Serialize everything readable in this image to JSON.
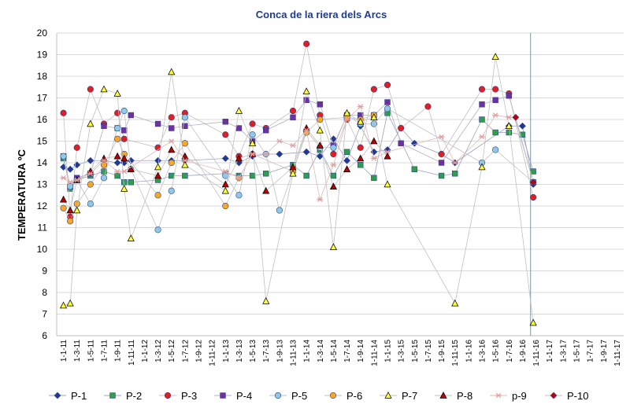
{
  "chart_data": {
    "type": "line",
    "title": "Conca de la riera dels Arcs",
    "ylabel": "TEMPERATURA     ºC",
    "xlabel": "",
    "ylim": [
      6,
      20
    ],
    "yticks": [
      6,
      7,
      8,
      9,
      10,
      11,
      12,
      13,
      14,
      15,
      16,
      17,
      18,
      19,
      20
    ],
    "grid": true,
    "legend_position": "bottom",
    "colors": {
      "title": "#1f3a93",
      "grid": "#d9d9d9",
      "connector": "#a6a6a6",
      "marker_line": "#2f3f8f",
      "vline": "#4bacc6"
    },
    "x": [
      "1-1-11",
      "1-3-11",
      "1-5-11",
      "1-7-11",
      "1-9-11",
      "1-11-11",
      "1-1-12",
      "1-3-12",
      "1-5-12",
      "1-7-12",
      "1-9-12",
      "1-11-12",
      "1-1-13",
      "1-3-13",
      "1-5-13",
      "1-7-13",
      "1-9-13",
      "1-11-13",
      "1-1-14",
      "1-3-14",
      "1-5-14",
      "1-7-14",
      "1-9-14",
      "1-11-14",
      "1-1-15",
      "1-3-15",
      "1-5-15",
      "1-7-15",
      "1-9-15",
      "1-11-15",
      "1-1-16",
      "1-3-16",
      "1-5-16",
      "1-7-16",
      "1-9-16",
      "1-11-16",
      "1-1-17",
      "1-3-17",
      "1-5-17",
      "1-7-17",
      "1-9-17",
      "1-11-17"
    ],
    "vline_at": 34.6,
    "series": [
      {
        "name": "P-1",
        "marker": "diamond",
        "color": "#1f3a93",
        "line": "#9aa0c0",
        "points": [
          [
            0,
            13.8
          ],
          [
            0.5,
            13.7
          ],
          [
            1,
            13.9
          ],
          [
            2,
            14.1
          ],
          [
            3,
            14.1
          ],
          [
            4,
            14.0
          ],
          [
            4.5,
            14.0
          ],
          [
            5,
            14.1
          ],
          [
            7,
            14.1
          ],
          [
            8,
            14.1
          ],
          [
            9,
            14.1
          ],
          [
            12,
            14.2
          ],
          [
            13,
            14.0
          ],
          [
            14,
            14.3
          ],
          [
            15,
            14.4
          ],
          [
            16,
            14.4
          ],
          [
            18,
            14.5
          ],
          [
            19,
            14.3
          ],
          [
            20,
            15.1
          ],
          [
            21,
            14.1
          ],
          [
            22,
            15.7
          ],
          [
            23,
            14.5
          ],
          [
            24,
            14.6
          ],
          [
            25,
            15.6
          ],
          [
            26,
            14.9
          ],
          [
            28,
            14.4
          ],
          [
            29,
            14.0
          ],
          [
            33,
            15.7
          ],
          [
            34,
            15.7
          ],
          [
            34.8,
            13.0
          ]
        ]
      },
      {
        "name": "P-2",
        "marker": "square",
        "color": "#2e9e4a",
        "line": "#9aa0c0",
        "points": [
          [
            0,
            14.2
          ],
          [
            0.5,
            12.8
          ],
          [
            1,
            13.2
          ],
          [
            2,
            13.4
          ],
          [
            3,
            13.6
          ],
          [
            4,
            13.4
          ],
          [
            4.5,
            13.1
          ],
          [
            5,
            13.1
          ],
          [
            7,
            13.2
          ],
          [
            8,
            13.4
          ],
          [
            9,
            13.4
          ],
          [
            12,
            13.5
          ],
          [
            13,
            13.4
          ],
          [
            14,
            13.4
          ],
          [
            15,
            13.5
          ],
          [
            17,
            13.9
          ],
          [
            18,
            13.4
          ],
          [
            19,
            14.6
          ],
          [
            20,
            13.4
          ],
          [
            21,
            14.5
          ],
          [
            22,
            13.9
          ],
          [
            23,
            13.3
          ],
          [
            24,
            16.3
          ],
          [
            26,
            13.7
          ],
          [
            28,
            13.4
          ],
          [
            29,
            13.5
          ],
          [
            31,
            16.0
          ],
          [
            32,
            15.4
          ],
          [
            33,
            15.4
          ],
          [
            34,
            15.3
          ],
          [
            34.8,
            13.6
          ]
        ]
      },
      {
        "name": "P-3",
        "marker": "circle",
        "color": "#e02020",
        "line": "#c0c0c0",
        "points": [
          [
            0,
            16.3
          ],
          [
            0.5,
            11.5
          ],
          [
            1,
            14.7
          ],
          [
            2,
            17.4
          ],
          [
            3,
            15.8
          ],
          [
            4,
            16.3
          ],
          [
            4.5,
            15.1
          ],
          [
            7,
            14.7
          ],
          [
            8,
            16.1
          ],
          [
            9,
            16.3
          ],
          [
            12,
            15.3
          ],
          [
            13,
            14.3
          ],
          [
            14,
            15.8
          ],
          [
            15,
            15.6
          ],
          [
            17,
            16.4
          ],
          [
            18,
            19.5
          ],
          [
            19,
            16.2
          ],
          [
            20,
            14.4
          ],
          [
            21,
            16.0
          ],
          [
            22,
            14.7
          ],
          [
            23,
            17.4
          ],
          [
            24,
            17.6
          ],
          [
            25,
            15.6
          ],
          [
            27,
            16.6
          ],
          [
            28,
            14.4
          ],
          [
            31,
            17.4
          ],
          [
            32,
            17.4
          ],
          [
            33,
            17.2
          ],
          [
            34.8,
            12.4
          ]
        ]
      },
      {
        "name": "P-4",
        "marker": "square",
        "color": "#7030a0",
        "line": "#b0b0c0",
        "points": [
          [
            0,
            14.3
          ],
          [
            0.5,
            12.9
          ],
          [
            1,
            13.3
          ],
          [
            2,
            13.5
          ],
          [
            3,
            15.7
          ],
          [
            4,
            15.6
          ],
          [
            4.5,
            15.5
          ],
          [
            5,
            16.2
          ],
          [
            7,
            15.8
          ],
          [
            8,
            15.6
          ],
          [
            9,
            15.7
          ],
          [
            12,
            15.9
          ],
          [
            13,
            15.6
          ],
          [
            14,
            15.0
          ],
          [
            15,
            15.5
          ],
          [
            17,
            16.1
          ],
          [
            18,
            16.9
          ],
          [
            19,
            16.7
          ],
          [
            20,
            14.8
          ],
          [
            21,
            16.2
          ],
          [
            22,
            16.2
          ],
          [
            23,
            16.2
          ],
          [
            24,
            16.8
          ],
          [
            25,
            14.9
          ],
          [
            28,
            14.0
          ],
          [
            31,
            16.7
          ],
          [
            32,
            16.9
          ],
          [
            33,
            17.1
          ],
          [
            34.8,
            13.1
          ]
        ]
      },
      {
        "name": "P-5",
        "marker": "circle",
        "color": "#8ecae6",
        "line": "#c0c0c0",
        "points": [
          [
            0,
            14.3
          ],
          [
            0.5,
            12.9
          ],
          [
            1,
            13.2
          ],
          [
            2,
            12.1
          ],
          [
            3,
            13.3
          ],
          [
            4,
            15.6
          ],
          [
            4.5,
            16.4
          ],
          [
            5,
            13.7
          ],
          [
            7,
            10.9
          ],
          [
            8,
            12.7
          ],
          [
            9,
            16.1
          ],
          [
            12,
            13.4
          ],
          [
            13,
            12.5
          ],
          [
            14,
            15.3
          ],
          [
            15,
            14.4
          ],
          [
            16,
            11.8
          ],
          [
            17,
            13.6
          ],
          [
            18,
            15.5
          ],
          [
            19,
            14.7
          ],
          [
            20,
            14.7
          ],
          [
            21,
            16.2
          ],
          [
            22,
            15.8
          ],
          [
            23,
            15.8
          ],
          [
            24,
            16.5
          ],
          [
            31,
            14.0
          ],
          [
            32,
            14.6
          ],
          [
            34.8,
            13.1
          ]
        ]
      },
      {
        "name": "P-6",
        "marker": "circle",
        "color": "#f7a823",
        "line": "#c0c0c0",
        "points": [
          [
            0,
            11.9
          ],
          [
            0.5,
            11.3
          ],
          [
            1,
            12.1
          ],
          [
            2,
            13.0
          ],
          [
            3,
            13.9
          ],
          [
            4,
            15.1
          ],
          [
            4.5,
            14.4
          ],
          [
            7,
            12.5
          ],
          [
            8,
            14.0
          ],
          [
            9,
            14.9
          ],
          [
            12,
            12.0
          ],
          [
            13,
            13.3
          ],
          [
            14,
            14.4
          ],
          [
            17,
            13.6
          ],
          [
            18,
            15.4
          ],
          [
            19,
            16.0
          ],
          [
            21,
            16.1
          ],
          [
            22,
            16.0
          ],
          [
            23,
            16.2
          ]
        ]
      },
      {
        "name": "P-7",
        "marker": "triangle",
        "color": "#ffff33",
        "line": "#c0c0c0",
        "points": [
          [
            0,
            7.4
          ],
          [
            0.5,
            7.5
          ],
          [
            1,
            11.8
          ],
          [
            2,
            15.8
          ],
          [
            3,
            17.4
          ],
          [
            4,
            17.2
          ],
          [
            4.5,
            12.8
          ],
          [
            5,
            10.5
          ],
          [
            7,
            13.8
          ],
          [
            8,
            18.2
          ],
          [
            9,
            13.9
          ],
          [
            12,
            12.7
          ],
          [
            13,
            16.4
          ],
          [
            14,
            14.9
          ],
          [
            15,
            7.6
          ],
          [
            17,
            13.5
          ],
          [
            18,
            17.3
          ],
          [
            19,
            15.5
          ],
          [
            20,
            10.1
          ],
          [
            21,
            16.3
          ],
          [
            22,
            15.9
          ],
          [
            23,
            16.1
          ],
          [
            24,
            13.0
          ],
          [
            29,
            7.5
          ],
          [
            31,
            13.8
          ],
          [
            32,
            18.9
          ],
          [
            33,
            15.7
          ],
          [
            34.8,
            6.6
          ]
        ]
      },
      {
        "name": "P-8",
        "marker": "triangle",
        "color": "#c00000",
        "line": "#c0c0c0",
        "points": [
          [
            0,
            12.3
          ],
          [
            0.5,
            11.8
          ],
          [
            1,
            13.2
          ],
          [
            2,
            13.6
          ],
          [
            3,
            14.2
          ],
          [
            4,
            14.3
          ],
          [
            4.5,
            14.2
          ],
          [
            5,
            13.7
          ],
          [
            7,
            13.4
          ],
          [
            8,
            14.6
          ],
          [
            9,
            14.3
          ],
          [
            12,
            13.0
          ],
          [
            13,
            14.2
          ],
          [
            14,
            14.4
          ],
          [
            15,
            12.7
          ],
          [
            17,
            13.8
          ],
          [
            18,
            15.6
          ],
          [
            19,
            14.8
          ],
          [
            20,
            12.9
          ],
          [
            21,
            13.7
          ],
          [
            22,
            14.2
          ],
          [
            23,
            15.0
          ],
          [
            24,
            14.3
          ]
        ]
      },
      {
        "name": "p-9",
        "marker": "star",
        "color": "#e0a0a0",
        "line": "#e0b8b8",
        "points": [
          [
            0,
            13.3
          ],
          [
            0.5,
            13.1
          ],
          [
            1,
            13.2
          ],
          [
            2,
            13.5
          ],
          [
            3,
            14.1
          ],
          [
            4,
            13.6
          ],
          [
            4.5,
            13.6
          ],
          [
            8,
            15.0
          ],
          [
            9,
            14.1
          ],
          [
            12,
            13.6
          ],
          [
            13,
            13.3
          ],
          [
            14,
            14.4
          ],
          [
            15,
            14.4
          ],
          [
            16,
            15.0
          ],
          [
            17,
            14.8
          ],
          [
            18,
            15.5
          ],
          [
            19,
            12.3
          ],
          [
            20,
            13.9
          ],
          [
            21,
            16.0
          ],
          [
            22,
            16.6
          ],
          [
            23,
            14.2
          ],
          [
            24,
            14.5
          ],
          [
            28,
            15.2
          ],
          [
            29,
            14.0
          ],
          [
            31,
            15.2
          ],
          [
            32,
            16.2
          ],
          [
            33,
            16.1
          ]
        ]
      },
      {
        "name": "P-10",
        "marker": "diamond",
        "color": "#c00000",
        "line": "#c0c0c0",
        "points": [
          [
            33.5,
            16.1
          ],
          [
            34.8,
            13.1
          ]
        ]
      }
    ]
  }
}
